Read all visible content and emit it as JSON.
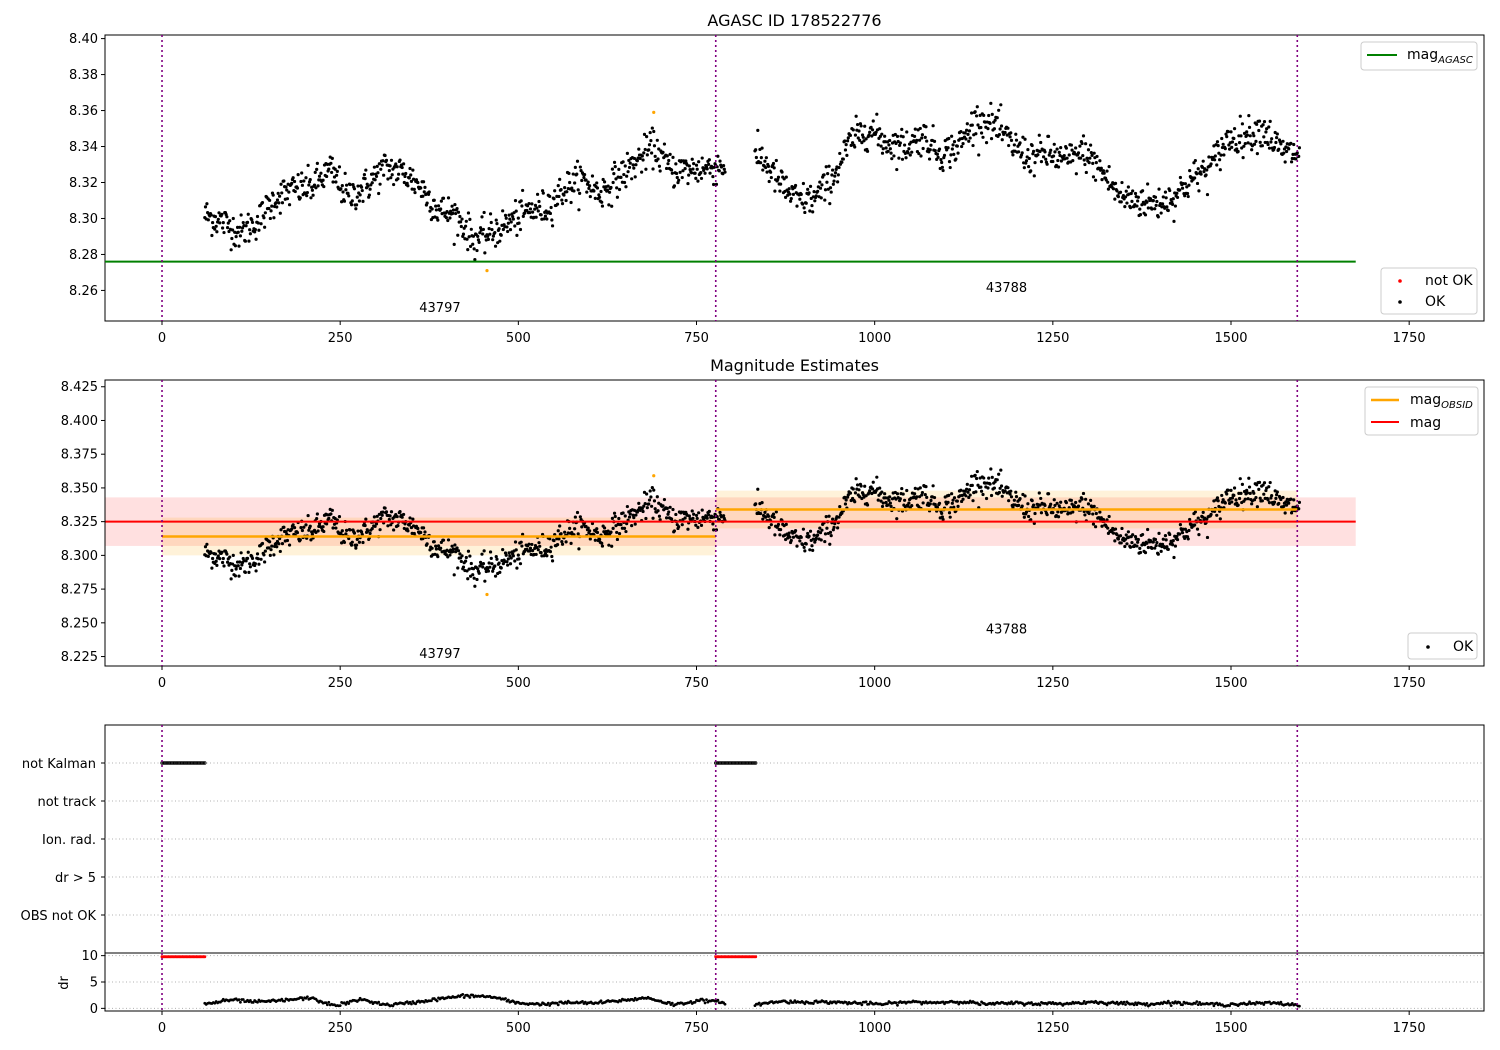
{
  "figure": {
    "colors": {
      "agasc_line": "#008000",
      "obsid_line": "#ffa500",
      "mag_line": "#ff0000",
      "ok_point": "#000000",
      "not_ok_point": "#ff0000",
      "obs_boundary": "#800080",
      "grid": "#b0b0b0"
    }
  },
  "chart_data": [
    {
      "id": "top",
      "type": "scatter",
      "title": "AGASC ID 178522776",
      "xlim": [
        -80,
        1855
      ],
      "ylim": [
        8.243,
        8.402
      ],
      "xticks": [
        0,
        250,
        500,
        750,
        1000,
        1250,
        1500,
        1750
      ],
      "yticks": [
        8.26,
        8.28,
        8.3,
        8.32,
        8.34,
        8.36,
        8.38,
        8.4
      ],
      "ytick_decimals": 2,
      "obs_boundaries": [
        0,
        777,
        1593
      ],
      "obsids": [
        {
          "label": "43797",
          "x": 390,
          "y": 8.248
        },
        {
          "label": "43788",
          "x": 1185,
          "y": 8.259
        }
      ],
      "mag_agasc": {
        "value": 8.276,
        "x": [
          -80,
          1675
        ]
      },
      "legend_upper": {
        "pre": "mag",
        "sub": "AGASC"
      },
      "legend_lower": [
        {
          "label": "not OK"
        },
        {
          "label": "OK"
        }
      ],
      "scatter_mean": [
        8.302,
        8.298,
        8.292,
        8.299,
        8.312,
        8.316,
        8.318,
        8.327,
        8.312,
        8.318,
        8.328,
        8.326,
        8.318,
        8.305,
        8.302,
        8.288,
        8.292,
        8.298,
        8.304,
        8.306,
        8.316,
        8.322,
        8.314,
        8.322,
        8.331,
        8.34,
        8.327,
        8.327,
        8.328,
        8.33,
        8.33,
        8.334,
        8.32,
        8.31,
        8.311,
        8.323,
        8.343,
        8.35,
        8.342,
        8.34,
        8.346,
        8.336,
        8.34,
        8.355,
        8.352,
        8.341,
        8.334,
        8.336,
        8.332,
        8.337,
        8.326,
        8.312,
        8.31,
        8.308,
        8.312,
        8.322,
        8.328,
        8.344,
        8.346,
        8.35,
        8.337,
        8.336
      ],
      "scatter_x_range": [
        60,
        1596
      ],
      "gap": [
        790,
        832
      ],
      "outliers": [
        {
          "x": 456,
          "y": 8.271
        },
        {
          "x": 690,
          "y": 8.359
        }
      ]
    },
    {
      "id": "middle",
      "type": "scatter",
      "title": "Magnitude Estimates",
      "xlim": [
        -80,
        1855
      ],
      "ylim": [
        8.218,
        8.43
      ],
      "xticks": [
        0,
        250,
        500,
        750,
        1000,
        1250,
        1500,
        1750
      ],
      "yticks": [
        8.225,
        8.25,
        8.275,
        8.3,
        8.325,
        8.35,
        8.375,
        8.4,
        8.425
      ],
      "ytick_decimals": 3,
      "obs_boundaries": [
        0,
        777,
        1593
      ],
      "obsids": [
        {
          "label": "43797",
          "x": 390,
          "y": 8.224
        },
        {
          "label": "43788",
          "x": 1185,
          "y": 8.242
        }
      ],
      "mag": {
        "value": 8.325,
        "band": [
          8.307,
          8.343
        ],
        "x": [
          -80,
          1675
        ]
      },
      "mag_obsid": [
        {
          "value": 8.314,
          "band": [
            8.3,
            8.328
          ],
          "x": [
            0,
            777
          ]
        },
        {
          "value": 8.334,
          "band": [
            8.32,
            8.348
          ],
          "x": [
            777,
            1593
          ]
        }
      ],
      "legend_upper": [
        {
          "pre": "mag",
          "sub": "OBSID"
        },
        {
          "label": "mag"
        }
      ],
      "legend_lower": [
        {
          "label": "OK"
        }
      ]
    },
    {
      "id": "flags",
      "type": "scatter",
      "xlim": [
        -80,
        1855
      ],
      "categories": [
        "not Kalman",
        "not track",
        "Ion. rad.",
        "dr > 5",
        "OBS not OK"
      ],
      "flag_segments": [
        {
          "category": "not Kalman",
          "x": [
            0,
            60
          ]
        },
        {
          "category": "not Kalman",
          "x": [
            777,
            833
          ]
        }
      ]
    },
    {
      "id": "dr",
      "type": "scatter",
      "ylabel": "dr",
      "xlim": [
        -80,
        1855
      ],
      "ylim": [
        -0.5,
        10.5
      ],
      "yticks": [
        0,
        5,
        10
      ],
      "xticks": [
        0,
        250,
        500,
        750,
        1000,
        1250,
        1500,
        1750
      ],
      "high_segments": [
        [
          0,
          60
        ],
        [
          777,
          833
        ]
      ],
      "high_value": 9.8,
      "low_mean": [
        0.8,
        1.6,
        1.2,
        1.5,
        2.0,
        0.5,
        1.7,
        0.6,
        1.1,
        1.8,
        2.4,
        2.2,
        1.0,
        0.8,
        1.1,
        1.0,
        1.5,
        2.0,
        0.7,
        1.5,
        1.1,
        0.6,
        1.3,
        1.2,
        1.2,
        1.0,
        0.8,
        1.2,
        1.1,
        1.3,
        0.8,
        1.0,
        0.9,
        0.9,
        1.2,
        1.0,
        0.8,
        1.1,
        0.9,
        0.7,
        0.9,
        1.0,
        0.6
      ]
    }
  ]
}
